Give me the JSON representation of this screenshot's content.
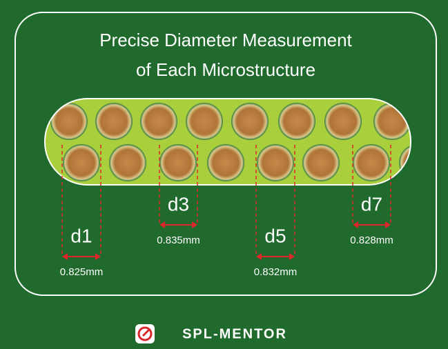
{
  "header": {
    "title_lines": [
      "Precise Diameter Measurement",
      "of Each Microstructure"
    ]
  },
  "measurements": [
    {
      "label": "d1",
      "value": "0.825mm"
    },
    {
      "label": "d3",
      "value": "0.835mm"
    },
    {
      "label": "d5",
      "value": "0.832mm"
    },
    {
      "label": "d7",
      "value": "0.828mm"
    }
  ],
  "logo": {
    "text": "SPL-MENTOR"
  }
}
